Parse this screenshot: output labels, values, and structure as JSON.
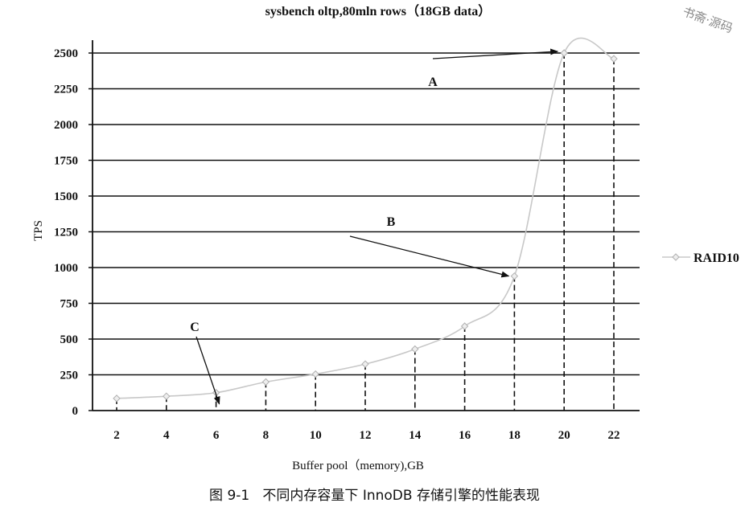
{
  "chart_data": {
    "type": "line",
    "title": "sysbench oltp,80mln rows（18GB data）",
    "xlabel": "Buffer pool（memory),GB",
    "ylabel": "TPS",
    "categories": [
      "2",
      "4",
      "6",
      "8",
      "10",
      "12",
      "14",
      "16",
      "18",
      "20",
      "22"
    ],
    "x": [
      2,
      4,
      6,
      8,
      10,
      12,
      14,
      16,
      18,
      20,
      22
    ],
    "ylim": [
      0,
      2500
    ],
    "y_ticks": [
      "0",
      "250",
      "500",
      "750",
      "1000",
      "1250",
      "1500",
      "1750",
      "2000",
      "2250",
      "2500"
    ],
    "series": [
      {
        "name": "RAID10",
        "values": [
          85,
          100,
          125,
          200,
          255,
          325,
          430,
          590,
          940,
          2500,
          2460
        ]
      }
    ],
    "grid": "horizontal",
    "drop_lines": "dashed vertical lines from each point to the x-axis",
    "legend_position": "right",
    "annotations": [
      {
        "label": "A",
        "points_to_x": 20,
        "points_to_y": 2500
      },
      {
        "label": "B",
        "points_to_x": 18,
        "points_to_y": 940
      },
      {
        "label": "C",
        "points_to_x": 6,
        "points_to_y": 125
      }
    ],
    "colors": {
      "series_line": "#c8c8c8",
      "marker": "#b0b0b0",
      "axis": "#111111",
      "grid": "#111111"
    }
  },
  "caption": "图 9-1   不同内存容量下 InnoDB 存储引擎的性能表现",
  "watermark": "书斋·源码"
}
